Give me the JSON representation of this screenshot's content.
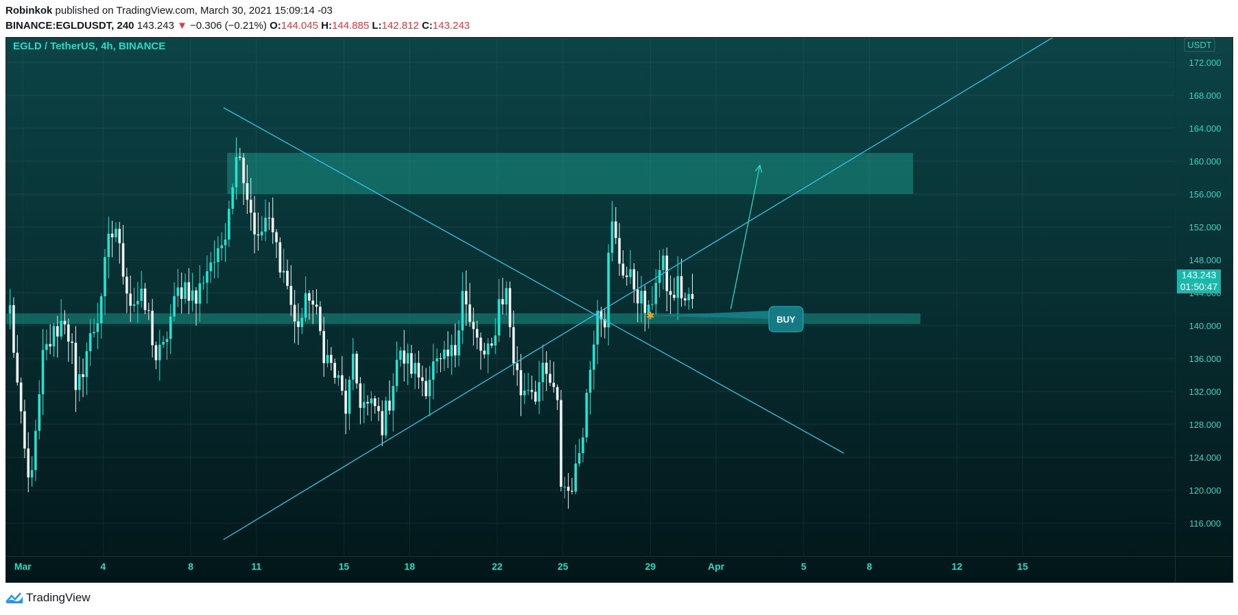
{
  "header": {
    "author": "Robinkok",
    "published_text": "published on TradingView.com, March 30, 2021 15:09:14 -03",
    "symbol": "BINANCE:EGLDUSDT, 240",
    "last": "143.243",
    "change_arrow": "▼",
    "change": "−0.306 (−0.21%)",
    "o_label": "O:",
    "o": "144.045",
    "h_label": "H:",
    "h": "144.885",
    "l_label": "L:",
    "l": "142.812",
    "c_label": "C:",
    "c": "143.243"
  },
  "chart_data": {
    "type": "candlestick",
    "title": "EGLD / TetherUS, 4h, BINANCE",
    "currency": "USDT",
    "ylim": [
      112,
      175
    ],
    "y_ticks": [
      "116.000",
      "120.000",
      "124.000",
      "128.000",
      "132.000",
      "136.000",
      "140.000",
      "144.000",
      "148.000",
      "152.000",
      "156.000",
      "160.000",
      "164.000",
      "168.000",
      "172.000"
    ],
    "x_ticks": [
      {
        "label": "Mar",
        "bar": 4
      },
      {
        "label": "4",
        "bar": 26
      },
      {
        "label": "8",
        "bar": 50
      },
      {
        "label": "11",
        "bar": 68
      },
      {
        "label": "15",
        "bar": 92
      },
      {
        "label": "18",
        "bar": 110
      },
      {
        "label": "22",
        "bar": 134
      },
      {
        "label": "25",
        "bar": 152
      },
      {
        "label": "29",
        "bar": 176
      },
      {
        "label": "Apr",
        "bar": 194
      },
      {
        "label": "5",
        "bar": 218
      },
      {
        "label": "8",
        "bar": 236
      },
      {
        "label": "12",
        "bar": 260
      },
      {
        "label": "15",
        "bar": 278
      }
    ],
    "last_price": "143.243",
    "countdown": "01:50:47",
    "price_path": [
      [
        0,
        142
      ],
      [
        3,
        128
      ],
      [
        5,
        121
      ],
      [
        7,
        126
      ],
      [
        9,
        136
      ],
      [
        12,
        139
      ],
      [
        15,
        141
      ],
      [
        17,
        137
      ],
      [
        18,
        131
      ],
      [
        21,
        137
      ],
      [
        24,
        141
      ],
      [
        27,
        150
      ],
      [
        29,
        152
      ],
      [
        30,
        149
      ],
      [
        33,
        143
      ],
      [
        36,
        143
      ],
      [
        38,
        141
      ],
      [
        40,
        136
      ],
      [
        42,
        137
      ],
      [
        44,
        141
      ],
      [
        46,
        144
      ],
      [
        48,
        145
      ],
      [
        51,
        143
      ],
      [
        53,
        146
      ],
      [
        55,
        148
      ],
      [
        57,
        148
      ],
      [
        59,
        152
      ],
      [
        61,
        158
      ],
      [
        63,
        162
      ],
      [
        64,
        158
      ],
      [
        66,
        154
      ],
      [
        68,
        150
      ],
      [
        70,
        153
      ],
      [
        72,
        151
      ],
      [
        74,
        148
      ],
      [
        76,
        145
      ],
      [
        78,
        140
      ],
      [
        80,
        141
      ],
      [
        82,
        144
      ],
      [
        84,
        141
      ],
      [
        86,
        137
      ],
      [
        88,
        135
      ],
      [
        90,
        133
      ],
      [
        92,
        130
      ],
      [
        94,
        135
      ],
      [
        96,
        131
      ],
      [
        98,
        130
      ],
      [
        100,
        130
      ],
      [
        102,
        128
      ],
      [
        104,
        131
      ],
      [
        106,
        136
      ],
      [
        108,
        136
      ],
      [
        110,
        135
      ],
      [
        112,
        134
      ],
      [
        114,
        133
      ],
      [
        116,
        135
      ],
      [
        118,
        135
      ],
      [
        120,
        136
      ],
      [
        122,
        137
      ],
      [
        124,
        145
      ],
      [
        126,
        140
      ],
      [
        128,
        138
      ],
      [
        130,
        136
      ],
      [
        132,
        137
      ],
      [
        134,
        143
      ],
      [
        136,
        144
      ],
      [
        138,
        136
      ],
      [
        140,
        132
      ],
      [
        142,
        133
      ],
      [
        144,
        132
      ],
      [
        146,
        134
      ],
      [
        148,
        133
      ],
      [
        150,
        130
      ],
      [
        151,
        121
      ],
      [
        153,
        120
      ],
      [
        155,
        122
      ],
      [
        157,
        128
      ],
      [
        159,
        135
      ],
      [
        161,
        143
      ],
      [
        163,
        141
      ],
      [
        164,
        148
      ],
      [
        165,
        152
      ],
      [
        167,
        148
      ],
      [
        169,
        146
      ],
      [
        171,
        145
      ],
      [
        173,
        143
      ],
      [
        175,
        141
      ],
      [
        177,
        146
      ],
      [
        179,
        147
      ],
      [
        181,
        143
      ],
      [
        183,
        145
      ],
      [
        185,
        143
      ],
      [
        187,
        143.243
      ]
    ],
    "annotations": {
      "zones": [
        {
          "top": 161,
          "bottom": 156,
          "x_start": 60,
          "x_end": 248
        },
        {
          "top": 141.5,
          "bottom": 140.2,
          "x_start": -1,
          "x_end": 250
        }
      ],
      "lines": [
        {
          "x1": 59,
          "y1": 166.5,
          "x2": 229,
          "y2": 124.5
        },
        {
          "x1": 59,
          "y1": 114,
          "x2": 288,
          "y2": 175.5
        }
      ],
      "arrow": {
        "x1": 198,
        "y1": 142,
        "x2": 206,
        "y2": 159.5
      },
      "callout_label": "BUY",
      "callout_point": {
        "x": 176,
        "y": 141.2
      }
    }
  },
  "footer": {
    "brand": "TradingView"
  }
}
